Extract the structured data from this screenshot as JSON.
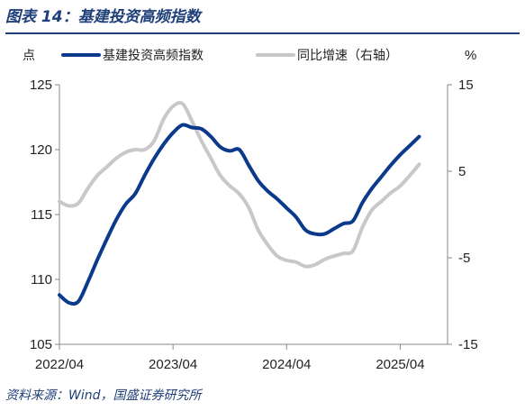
{
  "figure": {
    "title": "图表 14：基建投资高频指数",
    "source": "资料来源：Wind，国盛证券研究所"
  },
  "chart_data": {
    "type": "line",
    "title": "基建投资高频指数",
    "left_unit": "点",
    "right_unit": "%",
    "legend_placement": "top",
    "grid": false,
    "x_range": [
      "2022-04",
      "2025-09"
    ],
    "x_ticks": [
      "2022/04",
      "2023/04",
      "2024/04",
      "2025/04"
    ],
    "y_left": {
      "range": [
        105,
        125
      ],
      "ticks": [
        105,
        110,
        115,
        120,
        125
      ]
    },
    "y_right": {
      "range": [
        -15,
        15
      ],
      "ticks": [
        -15,
        -5,
        5,
        15
      ]
    },
    "series": [
      {
        "name": "基建投资高频指数",
        "axis": "left",
        "color": "#0b3a8c",
        "points": [
          [
            "2022-04",
            108.8
          ],
          [
            "2022-05",
            108.2
          ],
          [
            "2022-06",
            108.3
          ],
          [
            "2022-07",
            109.8
          ],
          [
            "2022-08",
            111.5
          ],
          [
            "2022-09",
            113.1
          ],
          [
            "2022-10",
            114.6
          ],
          [
            "2022-11",
            115.8
          ],
          [
            "2022-12",
            116.6
          ],
          [
            "2023-01",
            118.0
          ],
          [
            "2023-02",
            119.3
          ],
          [
            "2023-03",
            120.4
          ],
          [
            "2023-04",
            121.3
          ],
          [
            "2023-05",
            121.9
          ],
          [
            "2023-06",
            121.7
          ],
          [
            "2023-07",
            121.6
          ],
          [
            "2023-08",
            121.0
          ],
          [
            "2023-09",
            120.2
          ],
          [
            "2023-10",
            119.9
          ],
          [
            "2023-11",
            120.0
          ],
          [
            "2023-12",
            118.8
          ],
          [
            "2024-01",
            117.6
          ],
          [
            "2024-02",
            116.8
          ],
          [
            "2024-03",
            116.2
          ],
          [
            "2024-04",
            115.5
          ],
          [
            "2024-05",
            114.8
          ],
          [
            "2024-06",
            113.8
          ],
          [
            "2024-07",
            113.5
          ],
          [
            "2024-08",
            113.5
          ],
          [
            "2024-09",
            113.9
          ],
          [
            "2024-10",
            114.3
          ],
          [
            "2024-11",
            114.5
          ],
          [
            "2024-12",
            115.9
          ],
          [
            "2025-01",
            117.0
          ],
          [
            "2025-02",
            117.9
          ],
          [
            "2025-03",
            118.8
          ],
          [
            "2025-04",
            119.6
          ],
          [
            "2025-05",
            120.3
          ],
          [
            "2025-06",
            121.0
          ]
        ]
      },
      {
        "name": "同比增速（右轴）",
        "axis": "right",
        "color": "#c8c8c8",
        "points": [
          [
            "2022-04",
            1.5
          ],
          [
            "2022-05",
            1.0
          ],
          [
            "2022-06",
            1.3
          ],
          [
            "2022-07",
            3.0
          ],
          [
            "2022-08",
            4.5
          ],
          [
            "2022-09",
            5.5
          ],
          [
            "2022-10",
            6.5
          ],
          [
            "2022-11",
            7.2
          ],
          [
            "2022-12",
            7.5
          ],
          [
            "2023-01",
            7.5
          ],
          [
            "2023-02",
            8.5
          ],
          [
            "2023-03",
            11.0
          ],
          [
            "2023-04",
            12.5
          ],
          [
            "2023-05",
            12.8
          ],
          [
            "2023-06",
            10.8
          ],
          [
            "2023-07",
            8.5
          ],
          [
            "2023-08",
            6.5
          ],
          [
            "2023-09",
            4.5
          ],
          [
            "2023-10",
            3.3
          ],
          [
            "2023-11",
            2.4
          ],
          [
            "2023-12",
            0.8
          ],
          [
            "2024-01",
            -1.8
          ],
          [
            "2024-02",
            -3.5
          ],
          [
            "2024-03",
            -4.8
          ],
          [
            "2024-04",
            -5.3
          ],
          [
            "2024-05",
            -5.5
          ],
          [
            "2024-06",
            -6.0
          ],
          [
            "2024-07",
            -5.8
          ],
          [
            "2024-08",
            -5.2
          ],
          [
            "2024-09",
            -4.8
          ],
          [
            "2024-10",
            -4.5
          ],
          [
            "2024-11",
            -4.2
          ],
          [
            "2024-12",
            -1.5
          ],
          [
            "2025-01",
            0.5
          ],
          [
            "2025-02",
            1.5
          ],
          [
            "2025-03",
            2.5
          ],
          [
            "2025-04",
            3.3
          ],
          [
            "2025-05",
            4.5
          ],
          [
            "2025-06",
            5.8
          ]
        ]
      }
    ]
  }
}
